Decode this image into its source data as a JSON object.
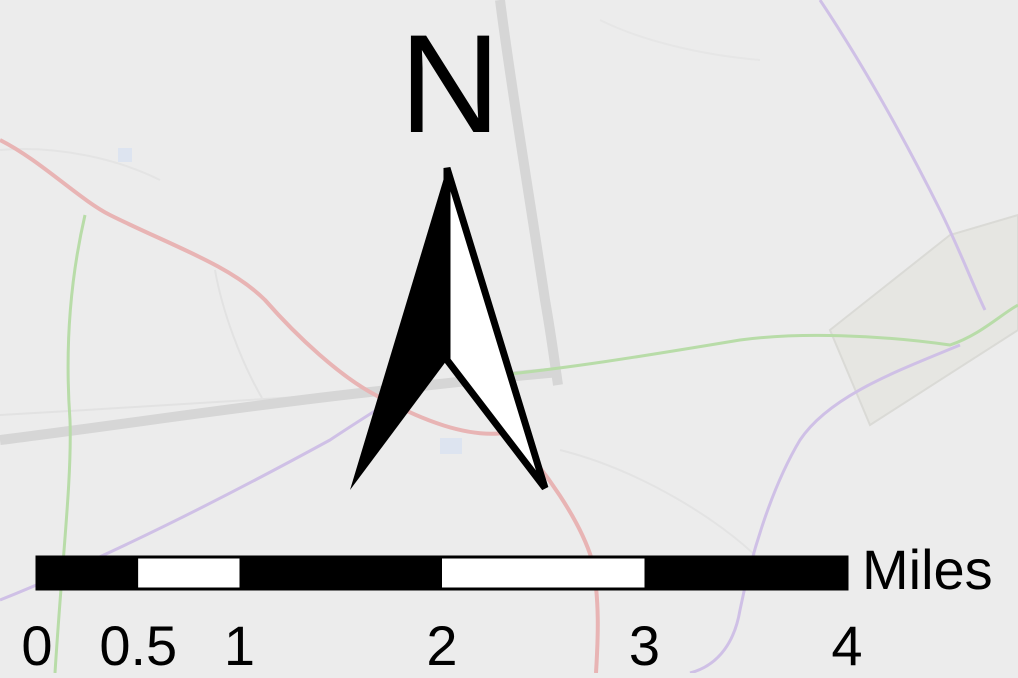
{
  "north_arrow": {
    "label": "N"
  },
  "scale_bar": {
    "unit": "Miles",
    "ticks": [
      {
        "value": 0,
        "label": "0"
      },
      {
        "value": 0.5,
        "label": "0.5"
      },
      {
        "value": 1,
        "label": "1"
      },
      {
        "value": 2,
        "label": "2"
      },
      {
        "value": 3,
        "label": "3"
      },
      {
        "value": 4,
        "label": "4"
      }
    ],
    "segments": [
      {
        "from": 0,
        "to": 0.5,
        "fill": "black"
      },
      {
        "from": 0.5,
        "to": 1,
        "fill": "white"
      },
      {
        "from": 1,
        "to": 2,
        "fill": "black"
      },
      {
        "from": 2,
        "to": 3,
        "fill": "white"
      },
      {
        "from": 3,
        "to": 4,
        "fill": "black"
      }
    ]
  },
  "colors": {
    "background": "#ececec",
    "road_red": "#e8b4b4",
    "road_green": "#b8dca8",
    "road_purple": "#cfc0e6",
    "road_gray": "#d6d6d6",
    "symbol": "#000000"
  }
}
